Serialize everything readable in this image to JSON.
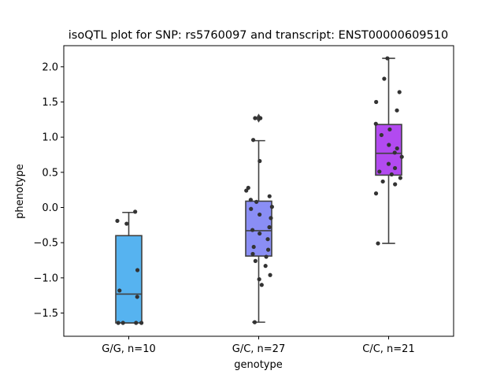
{
  "chart_data": {
    "type": "box",
    "title": "isoQTL plot for SNP: rs5760097 and transcript: ENST00000609510",
    "xlabel": "genotype",
    "ylabel": "phenotype",
    "ylim": [
      -1.83,
      2.3
    ],
    "yticks": [
      -1.5,
      -1.0,
      -0.5,
      0.0,
      0.5,
      1.0,
      1.5,
      2.0
    ],
    "ytick_labels": [
      "−1.5",
      "−1.0",
      "−0.5",
      "0.0",
      "0.5",
      "1.0",
      "1.5",
      "2.0"
    ],
    "grid": false,
    "groups": [
      {
        "category": "G/G, n=10",
        "color": "#56b3f0",
        "whisker_low": -1.64,
        "q1": -1.64,
        "median": -1.23,
        "q3": -0.4,
        "whisker_high": -0.07,
        "outliers": [],
        "points": [
          -0.06,
          -0.19,
          -0.23,
          -0.89,
          -1.18,
          -1.27,
          -1.64,
          -1.64,
          -1.64,
          -1.64
        ]
      },
      {
        "category": "G/C, n=27",
        "color": "#8a8ef5",
        "whisker_low": -1.63,
        "q1": -0.69,
        "median": -0.33,
        "q3": 0.09,
        "whisker_high": 0.95,
        "outliers": [
          1.27
        ],
        "points": [
          1.27,
          1.27,
          0.96,
          0.66,
          0.28,
          0.24,
          0.16,
          0.11,
          0.08,
          0.01,
          -0.02,
          -0.1,
          -0.15,
          -0.28,
          -0.32,
          -0.37,
          -0.45,
          -0.56,
          -0.6,
          -0.66,
          -0.7,
          -0.76,
          -0.83,
          -0.96,
          -1.02,
          -1.1,
          -1.63
        ]
      },
      {
        "category": "C/C, n=21",
        "color": "#b24af0",
        "whisker_low": -0.51,
        "q1": 0.46,
        "median": 0.77,
        "q3": 1.18,
        "whisker_high": 2.12,
        "outliers": [],
        "points": [
          2.12,
          1.83,
          1.64,
          1.5,
          1.38,
          1.19,
          1.11,
          1.03,
          0.89,
          0.84,
          0.78,
          0.72,
          0.62,
          0.56,
          0.51,
          0.47,
          0.42,
          0.37,
          0.33,
          0.2,
          -0.51
        ]
      }
    ]
  }
}
